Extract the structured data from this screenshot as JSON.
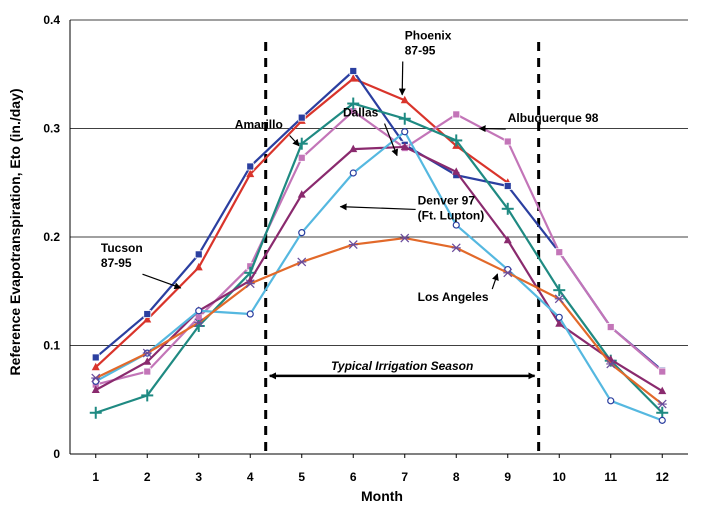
{
  "chart_data": {
    "type": "line",
    "xlabel": "Month",
    "ylabel": "Reference Evapotranspiration, Eto (in./day)",
    "x": [
      1,
      2,
      3,
      4,
      5,
      6,
      7,
      8,
      9,
      10,
      11,
      12
    ],
    "xlim": [
      0.5,
      12.5
    ],
    "ylim": [
      0,
      0.4
    ],
    "yticks": [
      "0",
      "0.1",
      "0.2",
      "0.3",
      "0.4"
    ],
    "xticks": [
      "1",
      "2",
      "3",
      "4",
      "5",
      "6",
      "7",
      "8",
      "9",
      "10",
      "11",
      "12"
    ],
    "grid": "horizontal",
    "irrigation_season": {
      "label": "Typical Irrigation Season",
      "start": 4.3,
      "end": 9.6
    },
    "series": [
      {
        "name": "Phoenix 87-95",
        "color": "#d9342b",
        "marker": "triangle",
        "values": [
          0.08,
          0.124,
          0.172,
          0.258,
          0.307,
          0.346,
          0.326,
          0.284,
          0.25,
          null,
          null,
          null
        ]
      },
      {
        "name": "Tucson 87-95",
        "color": "#2b3fa0",
        "marker": "square",
        "values": [
          0.089,
          0.129,
          0.184,
          0.265,
          0.31,
          0.353,
          0.285,
          0.257,
          0.247,
          0.186,
          0.117,
          0.077
        ]
      },
      {
        "name": "Albuquerque 98",
        "color": "#c375b8",
        "marker": "square",
        "values": [
          0.064,
          0.076,
          0.126,
          0.173,
          0.273,
          0.316,
          0.282,
          0.313,
          0.288,
          0.186,
          0.117,
          0.076
        ]
      },
      {
        "name": "Amarillo",
        "color": "#1f8a82",
        "marker": "plus",
        "values": [
          0.038,
          0.054,
          0.118,
          0.167,
          0.286,
          0.323,
          0.309,
          0.289,
          0.226,
          0.151,
          0.086,
          0.038
        ]
      },
      {
        "name": "Dallas",
        "color": "#8a2a6e",
        "marker": "triangle",
        "values": [
          0.059,
          0.085,
          0.132,
          0.16,
          0.239,
          0.281,
          0.283,
          0.26,
          0.197,
          0.12,
          0.087,
          0.058
        ]
      },
      {
        "name": "Denver 97 (Ft. Lupton)",
        "color": "#55b8e0",
        "marker": "circle",
        "values": [
          0.067,
          0.093,
          0.132,
          0.129,
          0.204,
          0.259,
          0.297,
          0.211,
          0.17,
          0.126,
          0.049,
          0.031
        ]
      },
      {
        "name": "Los Angeles",
        "color": "#e2692a",
        "marker": "star",
        "values": [
          0.07,
          0.093,
          0.121,
          0.157,
          0.177,
          0.193,
          0.199,
          0.19,
          0.167,
          0.143,
          0.083,
          0.046
        ]
      }
    ],
    "annotations": [
      {
        "lines": [
          "Phoenix",
          "87-95"
        ],
        "label_x": 7.0,
        "label_y": 0.382,
        "arrow_to_x": 6.95,
        "arrow_to_y": 0.331
      },
      {
        "lines": [
          "Albuquerque 98"
        ],
        "label_x": 9.0,
        "label_y": 0.306,
        "arrow_to_x": 8.45,
        "arrow_to_y": 0.3
      },
      {
        "lines": [
          "Amarillo"
        ],
        "label_x": 3.7,
        "label_y": 0.3,
        "arrow_to_x": 4.95,
        "arrow_to_y": 0.284
      },
      {
        "lines": [
          "Dallas"
        ],
        "label_x": 5.8,
        "label_y": 0.311,
        "arrow_to_x": 6.85,
        "arrow_to_y": 0.275
      },
      {
        "lines": [
          "Denver 97",
          "(Ft. Lupton)"
        ],
        "label_x": 7.25,
        "label_y": 0.23,
        "arrow_to_x": 5.75,
        "arrow_to_y": 0.228
      },
      {
        "lines": [
          "Tucson",
          "87-95"
        ],
        "label_x": 1.1,
        "label_y": 0.186,
        "arrow_to_x": 2.65,
        "arrow_to_y": 0.153
      },
      {
        "lines": [
          "Los Angeles"
        ],
        "label_x": 7.25,
        "label_y": 0.141,
        "arrow_to_x": 8.8,
        "arrow_to_y": 0.166
      }
    ]
  }
}
